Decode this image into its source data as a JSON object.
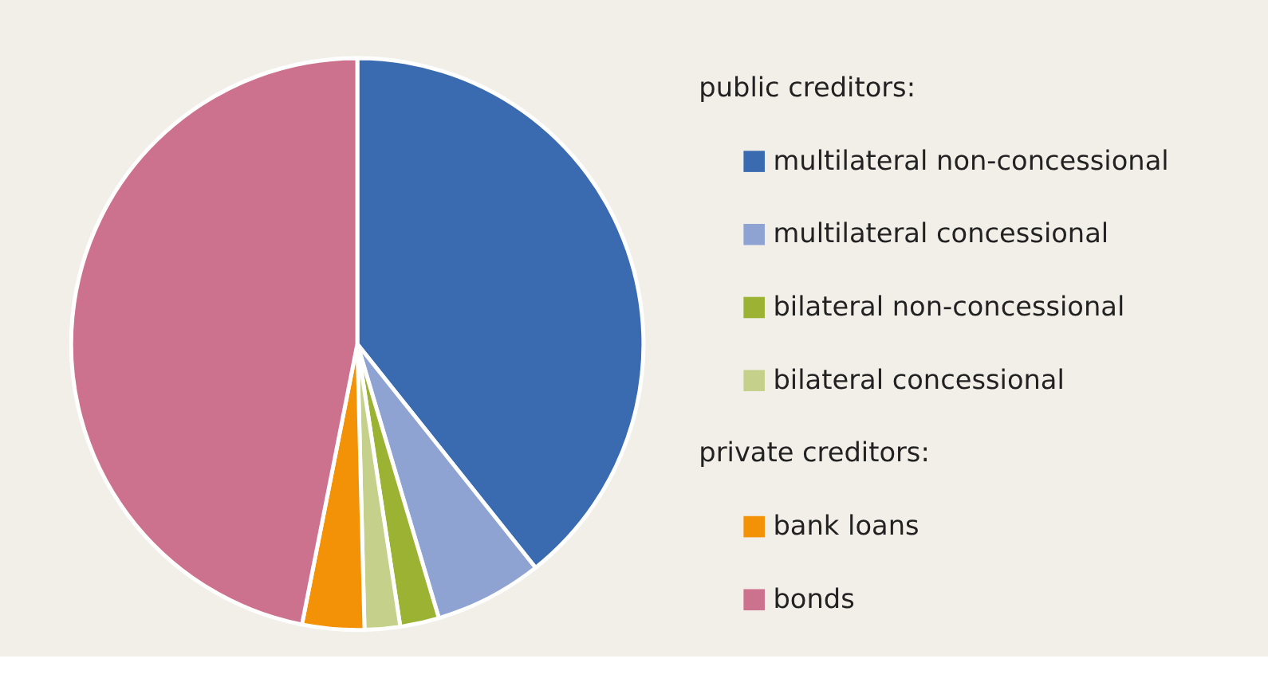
{
  "chart_data": {
    "type": "pie",
    "categories": [
      "multilateral non-concessional",
      "multilateral concessional",
      "bilateral non-concessional",
      "bilateral concessional",
      "bank loans",
      "bonds"
    ],
    "values": [
      39.3,
      6.1,
      2.2,
      2.0,
      3.5,
      46.9
    ],
    "colors": [
      "#3a6bb1",
      "#8fa3d3",
      "#9bb232",
      "#c5d08a",
      "#f39207",
      "#cd728e"
    ],
    "legend": "right",
    "annotations": [
      "public creditors:",
      "private creditors:"
    ]
  }
}
